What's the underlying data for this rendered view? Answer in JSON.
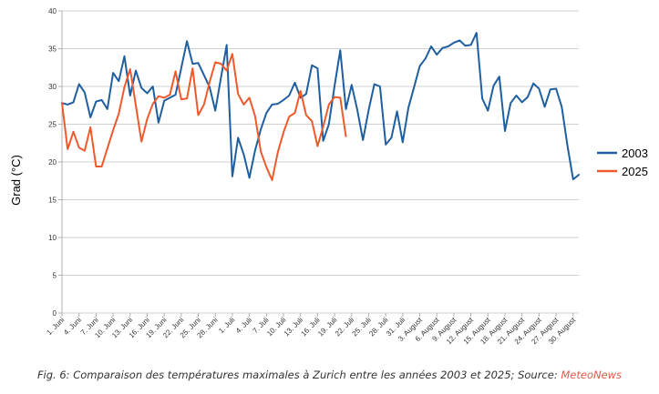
{
  "chart_data": {
    "type": "line",
    "ylabel": "Grad (°C)",
    "ylim": [
      0,
      40
    ],
    "yticks": [
      0,
      5,
      10,
      15,
      20,
      25,
      30,
      35,
      40
    ],
    "grid": true,
    "legend_position": "right",
    "x_tick_labels": [
      "1. Juni",
      "4. Juni",
      "7. Juni",
      "10. Juni",
      "13. Juni",
      "16. Juni",
      "19. Juni",
      "22. Juni",
      "25. Juni",
      "28. Juni",
      "1. Juli",
      "4. Juli",
      "7. Juli",
      "10. Juli",
      "13. Juli",
      "16. Juli",
      "19. Juli",
      "22. Juli",
      "25. Juli",
      "28. Juli",
      "31. Juli",
      "3. August",
      "6. August",
      "9. August",
      "12. August",
      "15. August",
      "18. August",
      "21. August",
      "24. August",
      "27. August",
      "30. August"
    ],
    "series": [
      {
        "name": "2003",
        "color": "#1f5fa0",
        "values": [
          27.8,
          27.6,
          27.9,
          30.3,
          29.2,
          25.9,
          28.0,
          28.2,
          27.0,
          31.8,
          30.7,
          34.0,
          28.8,
          32.1,
          29.8,
          29.1,
          30.0,
          25.2,
          28.1,
          28.5,
          28.9,
          32.4,
          36.0,
          33.0,
          33.1,
          31.5,
          29.9,
          26.8,
          31.2,
          35.5,
          18.1,
          23.2,
          21.0,
          17.9,
          21.5,
          24.3,
          26.5,
          27.6,
          27.7,
          28.2,
          28.8,
          30.5,
          28.5,
          29.0,
          32.8,
          32.4,
          22.8,
          25.0,
          30.1,
          34.8,
          27.0,
          30.2,
          26.9,
          22.9,
          26.9,
          30.3,
          30.0,
          22.3,
          23.2,
          26.7,
          22.6,
          27.2,
          29.9,
          32.7,
          33.7,
          35.3,
          34.2,
          35.1,
          35.3,
          35.8,
          36.1,
          35.4,
          35.5,
          37.1,
          28.4,
          26.8,
          30.1,
          31.3,
          24.1,
          27.8,
          28.8,
          27.9,
          28.6,
          30.4,
          29.7,
          27.3,
          29.6,
          29.7,
          27.3,
          22.2,
          17.7,
          18.3
        ]
      },
      {
        "name": "2025",
        "color": "#f0592b",
        "values": [
          27.8,
          21.7,
          24.0,
          21.9,
          21.5,
          24.6,
          19.4,
          19.4,
          21.8,
          24.2,
          26.4,
          29.9,
          32.3,
          27.5,
          22.7,
          25.7,
          27.7,
          28.7,
          28.5,
          28.9,
          32.0,
          28.3,
          28.4,
          32.4,
          26.2,
          27.6,
          30.6,
          33.2,
          33.0,
          32.1,
          34.3,
          29.0,
          27.6,
          28.5,
          26.1,
          21.4,
          19.3,
          17.6,
          21.3,
          23.9,
          26.0,
          26.5,
          29.4,
          26.2,
          25.4,
          22.1,
          24.7,
          27.6,
          28.6,
          28.5,
          23.4
        ]
      }
    ]
  },
  "caption": {
    "text": "Fig. 6: Comparaison des températures maximales à Zurich entre les années 2003 et 2025; Source: ",
    "source": "MeteoNews"
  }
}
